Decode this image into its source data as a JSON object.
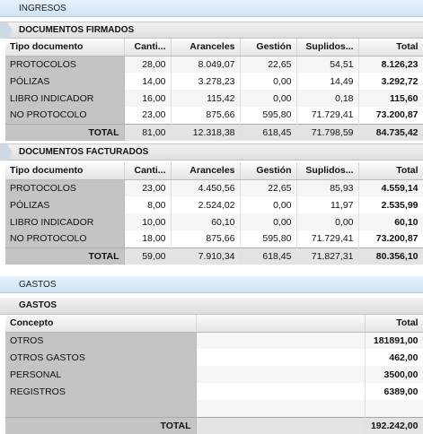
{
  "ingresos_title": "INGRESOS",
  "firmados": {
    "title": "DOCUMENTOS FIRMADOS",
    "headers": [
      "Tipo documento",
      "Canti...",
      "Aranceles",
      "Gestión",
      "Suplidos...",
      "Total"
    ],
    "rows": [
      [
        "PROTOCOLOS",
        "28,00",
        "8.049,07",
        "22,65",
        "54,51",
        "8.126,23"
      ],
      [
        "PÓLIZAS",
        "14,00",
        "3.278,23",
        "0,00",
        "14,49",
        "3.292,72"
      ],
      [
        "LIBRO INDICADOR",
        "16,00",
        "115,42",
        "0,00",
        "0,18",
        "115,60"
      ],
      [
        "NO PROTOCOLO",
        "23,00",
        "875,66",
        "595,80",
        "71.729,41",
        "73.200,87"
      ]
    ],
    "total": [
      "TOTAL",
      "81,00",
      "12.318,38",
      "618,45",
      "71.798,59",
      "84.735,42"
    ]
  },
  "facturados": {
    "title": "DOCUMENTOS FACTURADOS",
    "headers": [
      "Tipo documento",
      "Canti...",
      "Aranceles",
      "Gestión",
      "Suplidos...",
      "Total"
    ],
    "rows": [
      [
        "PROTOCOLOS",
        "23,00",
        "4.450,56",
        "22,65",
        "85,93",
        "4.559,14"
      ],
      [
        "PÓLIZAS",
        "8,00",
        "2.524,02",
        "0,00",
        "11,97",
        "2.535,99"
      ],
      [
        "LIBRO INDICADOR",
        "10,00",
        "60,10",
        "0,00",
        "0,00",
        "60,10"
      ],
      [
        "NO PROTOCOLO",
        "18,00",
        "875,66",
        "595,80",
        "71.729,41",
        "73.200,87"
      ]
    ],
    "total": [
      "TOTAL",
      "59,00",
      "7.910,34",
      "618,45",
      "71.827,31",
      "80.356,10"
    ]
  },
  "gastos_title": "GASTOS",
  "gastos": {
    "title": "GASTOS",
    "headers": [
      "Concepto",
      "Total"
    ],
    "rows": [
      [
        "OTROS",
        "181891,00"
      ],
      [
        "OTROS GASTOS",
        "462,00"
      ],
      [
        "PERSONAL",
        "3500,00"
      ],
      [
        "REGISTROS",
        "6389,00"
      ]
    ],
    "total": [
      "TOTAL",
      "192.242,00"
    ]
  }
}
